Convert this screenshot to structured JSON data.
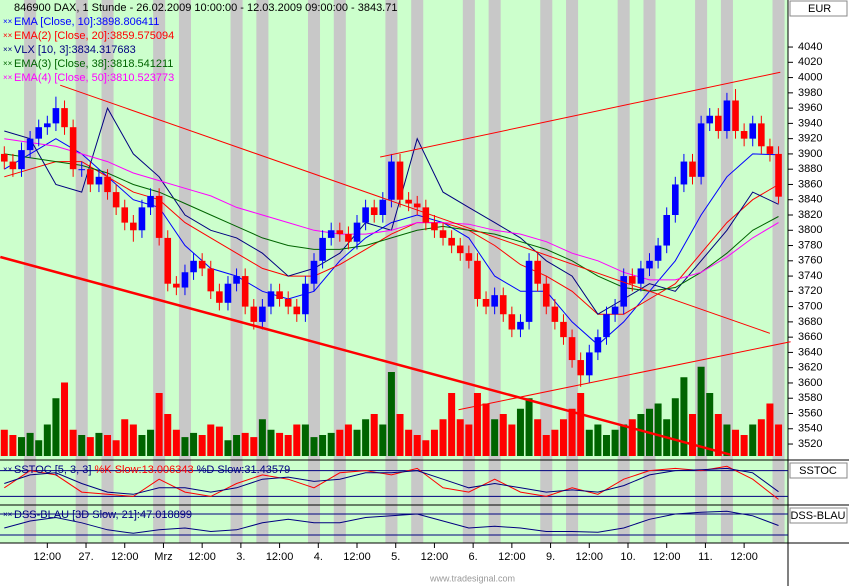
{
  "chart_data": {
    "type": "candlestick",
    "title": "846900  DAX, 1 Stunde - 26.02.2009 10:00:00 - 12.03.2009 09:00:00 - 3843.71",
    "currency": "EUR",
    "watermark": "www.tradesignal.com",
    "xlim": [
      -0.5,
      91.1
    ],
    "ylim": [
      3500,
      4080
    ],
    "yticks": [
      3520,
      3540,
      3560,
      3580,
      3600,
      3620,
      3640,
      3660,
      3680,
      3700,
      3720,
      3740,
      3760,
      3780,
      3800,
      3820,
      3840,
      3860,
      3880,
      3900,
      3920,
      3940,
      3960,
      3980,
      4000,
      4020,
      4040
    ],
    "xticks": [
      {
        "value": 5,
        "label": "12:00"
      },
      {
        "value": 9.5,
        "label": "27."
      },
      {
        "value": 14,
        "label": "12:00"
      },
      {
        "value": 18.5,
        "label": "Mrz"
      },
      {
        "value": 23,
        "label": "12:00"
      },
      {
        "value": 27.5,
        "label": "3."
      },
      {
        "value": 32,
        "label": "12:00"
      },
      {
        "value": 36.5,
        "label": "4."
      },
      {
        "value": 41,
        "label": "12:00"
      },
      {
        "value": 45.5,
        "label": "5."
      },
      {
        "value": 50,
        "label": "12:00"
      },
      {
        "value": 54.5,
        "label": "6."
      },
      {
        "value": 59,
        "label": "12:00"
      },
      {
        "value": 63.5,
        "label": "9."
      },
      {
        "value": 68,
        "label": "12:00"
      },
      {
        "value": 72.5,
        "label": "10."
      },
      {
        "value": 77,
        "label": "12:00"
      },
      {
        "value": 81.5,
        "label": "11."
      },
      {
        "value": 86,
        "label": "12:00"
      }
    ],
    "up_color": "#0000ff",
    "down_color": "#ff0000",
    "open": [
      3900,
      3890,
      3880,
      3905,
      3920,
      3935,
      3940,
      3960,
      3935,
      3880,
      3880,
      3860,
      3870,
      3850,
      3830,
      3810,
      3800,
      3830,
      3845,
      3790,
      3730,
      3725,
      3745,
      3760,
      3750,
      3720,
      3705,
      3730,
      3740,
      3700,
      3680,
      3700,
      3720,
      3710,
      3700,
      3690,
      3730,
      3760,
      3790,
      3800,
      3795,
      3785,
      3810,
      3830,
      3820,
      3840,
      3890,
      3840,
      3835,
      3830,
      3810,
      3800,
      3790,
      3780,
      3770,
      3760,
      3710,
      3700,
      3715,
      3690,
      3670,
      3680,
      3760,
      3730,
      3700,
      3680,
      3660,
      3630,
      3610,
      3640,
      3660,
      3690,
      3700,
      3740,
      3730,
      3750,
      3760,
      3780,
      3820,
      3860,
      3890,
      3870,
      3940,
      3950,
      3930,
      3970,
      3930,
      3920,
      3940,
      3910,
      3900
    ],
    "high": [
      3910,
      3900,
      3915,
      3930,
      3945,
      3950,
      3975,
      3970,
      3945,
      3890,
      3890,
      3880,
      3880,
      3860,
      3840,
      3820,
      3840,
      3855,
      3855,
      3800,
      3740,
      3755,
      3770,
      3770,
      3760,
      3730,
      3740,
      3750,
      3750,
      3710,
      3710,
      3730,
      3730,
      3720,
      3710,
      3740,
      3770,
      3800,
      3810,
      3810,
      3805,
      3820,
      3840,
      3840,
      3850,
      3900,
      3900,
      3850,
      3845,
      3840,
      3820,
      3810,
      3800,
      3790,
      3780,
      3770,
      3720,
      3725,
      3725,
      3700,
      3690,
      3770,
      3770,
      3740,
      3710,
      3690,
      3670,
      3640,
      3650,
      3670,
      3700,
      3710,
      3750,
      3750,
      3760,
      3770,
      3790,
      3830,
      3870,
      3900,
      3900,
      3950,
      3960,
      3960,
      3980,
      3985,
      3940,
      3950,
      3950,
      3920,
      3910
    ],
    "low": [
      3880,
      3870,
      3870,
      3895,
      3910,
      3925,
      3930,
      3925,
      3870,
      3870,
      3850,
      3850,
      3840,
      3820,
      3800,
      3785,
      3790,
      3820,
      3780,
      3720,
      3715,
      3715,
      3735,
      3740,
      3710,
      3695,
      3695,
      3720,
      3690,
      3670,
      3670,
      3690,
      3700,
      3690,
      3680,
      3680,
      3720,
      3750,
      3780,
      3785,
      3775,
      3775,
      3800,
      3810,
      3810,
      3830,
      3830,
      3825,
      3820,
      3800,
      3790,
      3780,
      3770,
      3760,
      3750,
      3700,
      3690,
      3690,
      3680,
      3660,
      3660,
      3670,
      3720,
      3690,
      3670,
      3650,
      3620,
      3595,
      3600,
      3630,
      3650,
      3680,
      3690,
      3720,
      3720,
      3740,
      3750,
      3770,
      3810,
      3850,
      3860,
      3860,
      3930,
      3920,
      3920,
      3920,
      3910,
      3910,
      3900,
      3890,
      3835
    ],
    "close": [
      3890,
      3880,
      3905,
      3920,
      3935,
      3940,
      3960,
      3935,
      3880,
      3880,
      3860,
      3870,
      3850,
      3830,
      3810,
      3800,
      3830,
      3845,
      3790,
      3730,
      3725,
      3745,
      3760,
      3750,
      3720,
      3705,
      3730,
      3740,
      3700,
      3680,
      3700,
      3720,
      3710,
      3700,
      3690,
      3730,
      3760,
      3790,
      3800,
      3795,
      3785,
      3810,
      3830,
      3820,
      3840,
      3890,
      3840,
      3835,
      3830,
      3810,
      3800,
      3790,
      3780,
      3770,
      3760,
      3710,
      3700,
      3715,
      3690,
      3670,
      3680,
      3760,
      3730,
      3700,
      3680,
      3660,
      3630,
      3610,
      3640,
      3660,
      3690,
      3700,
      3740,
      3730,
      3750,
      3760,
      3780,
      3820,
      3860,
      3890,
      3870,
      3940,
      3950,
      3930,
      3970,
      3930,
      3920,
      3940,
      3910,
      3900,
      3844
    ],
    "volume": {
      "up_color": "#006400",
      "down_color": "#ff0000",
      "values": [
        25,
        20,
        18,
        22,
        15,
        30,
        55,
        70,
        25,
        20,
        18,
        22,
        20,
        15,
        35,
        30,
        20,
        25,
        60,
        40,
        25,
        18,
        22,
        20,
        30,
        28,
        15,
        20,
        22,
        18,
        35,
        25,
        22,
        20,
        30,
        30,
        18,
        20,
        22,
        25,
        30,
        25,
        35,
        40,
        30,
        80,
        40,
        25,
        20,
        15,
        25,
        35,
        60,
        35,
        30,
        60,
        50,
        35,
        40,
        30,
        45,
        55,
        35,
        20,
        25,
        35,
        45,
        60,
        25,
        30,
        20,
        25,
        30,
        35,
        40,
        45,
        50,
        35,
        55,
        75,
        40,
        85,
        60,
        40,
        30,
        25,
        20,
        30,
        35,
        50,
        30
      ]
    },
    "series": [
      {
        "name": "EMA [Close, 10]:3898.806411",
        "color": "#0000ff",
        "x": [
          0,
          3,
          6,
          9,
          12,
          15,
          18,
          21,
          24,
          27,
          30,
          33,
          36,
          39,
          42,
          45,
          48,
          51,
          54,
          57,
          60,
          63,
          66,
          69,
          72,
          75,
          78,
          81,
          84,
          87,
          90
        ],
        "values": [
          3880,
          3900,
          3920,
          3900,
          3870,
          3840,
          3830,
          3780,
          3750,
          3740,
          3720,
          3710,
          3720,
          3760,
          3790,
          3810,
          3820,
          3810,
          3790,
          3740,
          3720,
          3720,
          3680,
          3650,
          3680,
          3720,
          3760,
          3820,
          3870,
          3900,
          3899
        ]
      },
      {
        "name": "EMA(2) [Close, 20]:3859.575094",
        "color": "#ff0000",
        "x": [
          0,
          3,
          6,
          9,
          12,
          15,
          18,
          21,
          24,
          27,
          30,
          33,
          36,
          39,
          42,
          45,
          48,
          51,
          54,
          57,
          60,
          63,
          66,
          69,
          72,
          75,
          78,
          81,
          84,
          87,
          90
        ],
        "values": [
          3870,
          3880,
          3890,
          3890,
          3870,
          3850,
          3840,
          3810,
          3790,
          3770,
          3750,
          3740,
          3740,
          3755,
          3775,
          3795,
          3810,
          3810,
          3800,
          3780,
          3755,
          3740,
          3720,
          3690,
          3690,
          3710,
          3730,
          3770,
          3810,
          3840,
          3860
        ]
      },
      {
        "name": "VLX [10, 3]:3834.317683",
        "color": "#000080",
        "x": [
          0,
          3,
          6,
          9,
          12,
          15,
          18,
          21,
          24,
          27,
          30,
          33,
          36,
          39,
          42,
          45,
          48,
          51,
          54,
          57,
          60,
          63,
          66,
          69,
          72,
          75,
          78,
          81,
          84,
          87,
          90
        ],
        "values": [
          3930,
          3920,
          3860,
          3850,
          3960,
          3900,
          3870,
          3820,
          3800,
          3790,
          3770,
          3740,
          3750,
          3770,
          3810,
          3800,
          3920,
          3850,
          3830,
          3810,
          3790,
          3760,
          3740,
          3690,
          3710,
          3730,
          3720,
          3760,
          3800,
          3850,
          3834
        ]
      },
      {
        "name": "EMA(3) [Close, 38]:3818.541211",
        "color": "#006400",
        "x": [
          0,
          3,
          6,
          9,
          12,
          15,
          18,
          21,
          24,
          27,
          30,
          33,
          36,
          39,
          42,
          45,
          48,
          51,
          54,
          57,
          60,
          63,
          66,
          69,
          72,
          75,
          78,
          81,
          84,
          87,
          90
        ],
        "values": [
          3900,
          3895,
          3890,
          3885,
          3875,
          3860,
          3850,
          3835,
          3820,
          3805,
          3790,
          3780,
          3775,
          3775,
          3780,
          3790,
          3800,
          3805,
          3800,
          3795,
          3785,
          3775,
          3760,
          3740,
          3725,
          3720,
          3725,
          3745,
          3770,
          3800,
          3818
        ]
      },
      {
        "name": "EMA(4) [Close, 50]:3810.523773",
        "color": "#ff00ff",
        "x": [
          0,
          3,
          6,
          9,
          12,
          15,
          18,
          21,
          24,
          27,
          30,
          33,
          36,
          39,
          42,
          45,
          48,
          51,
          54,
          57,
          60,
          63,
          66,
          69,
          72,
          75,
          78,
          81,
          84,
          87,
          90
        ],
        "values": [
          3920,
          3915,
          3910,
          3900,
          3890,
          3875,
          3865,
          3855,
          3845,
          3830,
          3820,
          3810,
          3800,
          3795,
          3795,
          3800,
          3810,
          3810,
          3808,
          3800,
          3795,
          3785,
          3770,
          3760,
          3745,
          3735,
          3735,
          3745,
          3765,
          3790,
          3810
        ]
      }
    ],
    "trendlines": [
      {
        "color": "#ff0000",
        "width": 1,
        "x": [
          43.7,
          90.2
        ],
        "values": [
          3896,
          4007
        ]
      },
      {
        "color": "#ff0000",
        "width": 1,
        "x": [
          52.8,
          91.4
        ],
        "values": [
          3565,
          3654
        ]
      },
      {
        "color": "#ff0000",
        "width": 1,
        "x": [
          6.5,
          89
        ],
        "values": [
          3990,
          3665
        ]
      },
      {
        "color": "#ff0000",
        "width": 2.5,
        "x": [
          -0.47,
          84.4
        ],
        "values": [
          3765,
          3506
        ]
      }
    ],
    "panels": [
      {
        "label": "SSTOC",
        "title": "SSTOC [5, 3, 3]",
        "ylim": [
          0,
          100
        ],
        "levels": [
          20,
          80
        ],
        "series": [
          {
            "name": "%K Slow:13.006343",
            "color": "#ff0000",
            "x": [
              0,
              3,
              6,
              9,
              12,
              15,
              18,
              21,
              24,
              27,
              30,
              33,
              36,
              39,
              42,
              45,
              48,
              51,
              54,
              57,
              60,
              63,
              66,
              69,
              72,
              75,
              78,
              81,
              84,
              87,
              90
            ],
            "values": [
              40,
              80,
              70,
              30,
              25,
              20,
              60,
              30,
              20,
              50,
              70,
              60,
              40,
              75,
              80,
              70,
              85,
              40,
              30,
              60,
              30,
              20,
              40,
              25,
              60,
              80,
              85,
              80,
              90,
              60,
              13
            ]
          },
          {
            "name": "%D Slow:31.43579",
            "color": "#000080",
            "x": [
              0,
              3,
              6,
              9,
              12,
              15,
              18,
              21,
              24,
              27,
              30,
              33,
              36,
              39,
              42,
              45,
              48,
              51,
              54,
              57,
              60,
              63,
              66,
              69,
              72,
              75,
              78,
              81,
              84,
              87,
              90
            ],
            "values": [
              50,
              70,
              75,
              50,
              30,
              25,
              40,
              40,
              30,
              40,
              60,
              65,
              55,
              60,
              75,
              75,
              80,
              60,
              40,
              50,
              40,
              30,
              35,
              30,
              45,
              70,
              80,
              82,
              85,
              75,
              31
            ]
          }
        ]
      },
      {
        "label": "DSS-BLAU",
        "title": "DSS-BLAU",
        "ylim": [
          0,
          100
        ],
        "levels": [
          20,
          80
        ],
        "series": [
          {
            "name": "[3D Slow, 21]:47.018899",
            "color": "#000080",
            "x": [
              0,
              3,
              6,
              9,
              12,
              15,
              18,
              21,
              24,
              27,
              30,
              33,
              36,
              39,
              42,
              45,
              48,
              51,
              54,
              57,
              60,
              63,
              66,
              69,
              72,
              75,
              78,
              81,
              84,
              87,
              90
            ],
            "values": [
              40,
              60,
              70,
              55,
              35,
              25,
              35,
              40,
              30,
              35,
              55,
              65,
              55,
              55,
              70,
              75,
              80,
              60,
              40,
              45,
              40,
              30,
              30,
              28,
              40,
              65,
              80,
              85,
              88,
              75,
              47
            ]
          }
        ]
      }
    ]
  }
}
